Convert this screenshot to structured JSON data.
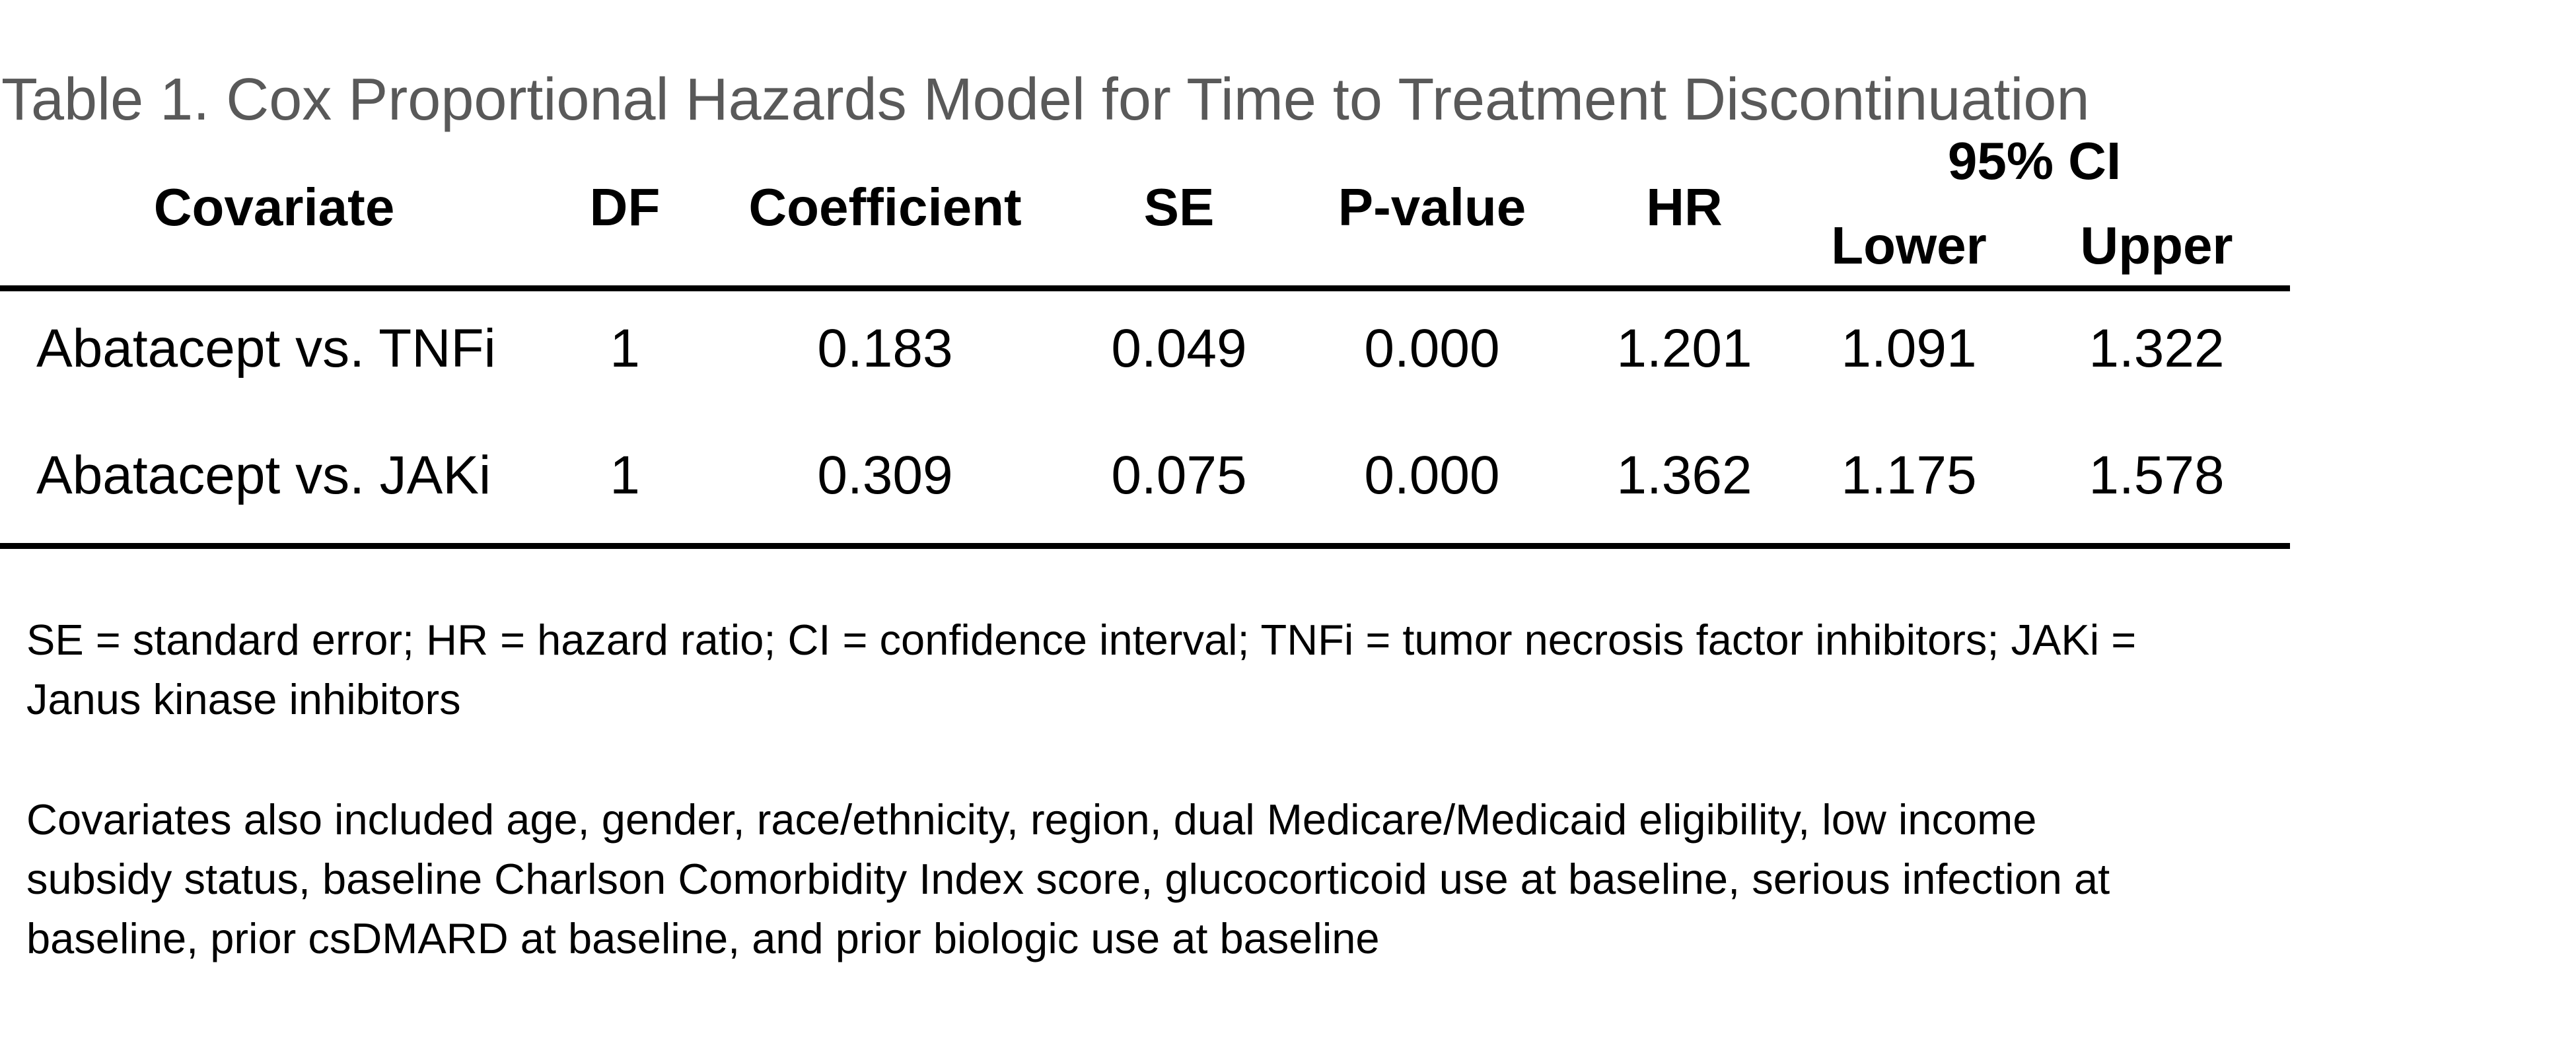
{
  "title": "Table 1. Cox Proportional Hazards Model for Time to Treatment Discontinuation",
  "table": {
    "ci_group_header": "95% CI",
    "columns": [
      "Covariate",
      "DF",
      "Coefficient",
      "SE",
      "P-value",
      "HR",
      "Lower",
      "Upper"
    ],
    "rows": [
      {
        "covariate": "Abatacept vs. TNFi",
        "df": "1",
        "coefficient": "0.183",
        "se": "0.049",
        "p_value": "0.000",
        "hr": "1.201",
        "ci_lower": "1.091",
        "ci_upper": "1.322"
      },
      {
        "covariate": "Abatacept vs. JAKi",
        "df": "1",
        "coefficient": "0.309",
        "se": "0.075",
        "p_value": "0.000",
        "hr": "1.362",
        "ci_lower": "1.175",
        "ci_upper": "1.578"
      }
    ]
  },
  "footnotes": {
    "abbreviations_lines": [
      "SE = standard error; HR = hazard ratio; CI = confidence interval; TNFi = tumor necrosis factor inhibitors; JAKi =",
      "Janus kinase inhibitors"
    ],
    "covariates_lines": [
      "Covariates also included age, gender, race/ethnicity, region, dual Medicare/Medicaid eligibility, low income",
      "subsidy status, baseline Charlson Comorbidity Index score, glucocorticoid use at baseline, serious infection at",
      "baseline, prior csDMARD at baseline, and prior biologic use at baseline"
    ]
  },
  "colors": {
    "title_gray": "#595959",
    "text_black": "#000000",
    "rule_black": "#000000",
    "background": "#ffffff"
  }
}
